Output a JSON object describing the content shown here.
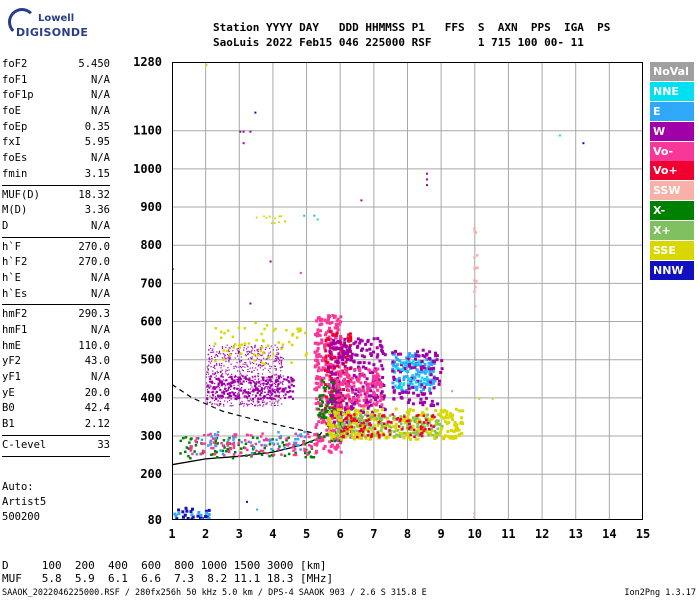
{
  "logo": {
    "line1": "Lowell",
    "line2": "DIGISONDE"
  },
  "header": {
    "line1": "Station YYYY DAY   DDD HHMMSS P1   FFS  S  AXN  PPS  IGA  PS",
    "line2": "SaoLuis 2022 Feb15 046 225000 RSF       1 715 100 00- 11"
  },
  "params": {
    "group1": [
      {
        "name": "foF2",
        "value": "5.450"
      },
      {
        "name": "foF1",
        "value": "N/A"
      },
      {
        "name": "foF1p",
        "value": "N/A"
      },
      {
        "name": "foE",
        "value": "N/A"
      },
      {
        "name": "foEp",
        "value": "0.35"
      },
      {
        "name": "fxI",
        "value": "5.95"
      },
      {
        "name": "foEs",
        "value": "N/A"
      },
      {
        "name": "fmin",
        "value": "3.15"
      }
    ],
    "group2": [
      {
        "name": "MUF(D)",
        "value": "18.32"
      },
      {
        "name": "M(D)",
        "value": "3.36"
      },
      {
        "name": "D",
        "value": "N/A"
      }
    ],
    "group3": [
      {
        "name": "h`F",
        "value": "270.0"
      },
      {
        "name": "h`F2",
        "value": "270.0"
      },
      {
        "name": "h`E",
        "value": "N/A"
      },
      {
        "name": "h`Es",
        "value": "N/A"
      }
    ],
    "group4": [
      {
        "name": "hmF2",
        "value": "290.3"
      },
      {
        "name": "hmF1",
        "value": "N/A"
      },
      {
        "name": "hmE",
        "value": "110.0"
      },
      {
        "name": "yF2",
        "value": "43.0"
      },
      {
        "name": "yF1",
        "value": "N/A"
      },
      {
        "name": "yE",
        "value": "20.0"
      },
      {
        "name": "B0",
        "value": "42.4"
      },
      {
        "name": "B1",
        "value": "2.12"
      }
    ],
    "group5": [
      {
        "name": "C-level",
        "value": "33"
      }
    ]
  },
  "auto": {
    "line1": "Auto:",
    "line2": "Artist5",
    "line3": "500200"
  },
  "legend": [
    {
      "label": "NoVal",
      "color": "#a0a0a0"
    },
    {
      "label": "NNE",
      "color": "#00e0f0"
    },
    {
      "label": "E",
      "color": "#30a8f8"
    },
    {
      "label": "W",
      "color": "#a000a8"
    },
    {
      "label": "Vo-",
      "color": "#f83898"
    },
    {
      "label": "Vo+",
      "color": "#f00030"
    },
    {
      "label": "SSW",
      "color": "#f8b0a8"
    },
    {
      "label": "X-",
      "color": "#008000"
    },
    {
      "label": "X+",
      "color": "#80c060"
    },
    {
      "label": "SSE",
      "color": "#d8d800"
    },
    {
      "label": "NNW",
      "color": "#1010c0"
    }
  ],
  "table": {
    "line1": "D     100  200  400  600  800 1000 1500 3000 [km]",
    "line2": "MUF   5.8  5.9  6.1  6.6  7.3  8.2 11.1 18.3 [MHz]"
  },
  "footer": {
    "left": "SAAOK_2022046225000.RSF / 280fx256h 50 kHz 5.0 km / DPS-4 SAAOK 903 / 2.6 S 315.8 E",
    "right": "Ion2Png 1.3.17"
  },
  "chart_data": {
    "type": "scatter",
    "xlim": [
      1,
      15
    ],
    "ylim": [
      80,
      1280
    ],
    "x_ticks": [
      "1",
      "2",
      "3",
      "4",
      "5",
      "6",
      "7",
      "8",
      "9",
      "10",
      "11",
      "12",
      "13",
      "14",
      "15"
    ],
    "y_ticks": [
      "80",
      "200",
      "300",
      "400",
      "500",
      "600",
      "700",
      "800",
      "900",
      "1000",
      "1100",
      "1280"
    ],
    "grid": true,
    "profile_solid": [
      [
        1.0,
        225
      ],
      [
        2.0,
        240
      ],
      [
        3.0,
        247
      ],
      [
        4.0,
        258
      ],
      [
        4.8,
        275
      ],
      [
        5.3,
        292
      ],
      [
        5.45,
        310
      ]
    ],
    "profile_dashed": [
      [
        1.0,
        435
      ],
      [
        1.6,
        400
      ],
      [
        2.5,
        365
      ],
      [
        3.5,
        342
      ],
      [
        4.5,
        322
      ],
      [
        5.2,
        308
      ],
      [
        5.45,
        300
      ]
    ],
    "clusters": [
      {
        "color_ref": 3,
        "xr": [
          2.0,
          4.3
        ],
        "yr": [
          380,
          540
        ],
        "n": 700,
        "size": 1.2
      },
      {
        "color_ref": 3,
        "xr": [
          2.0,
          4.6
        ],
        "yr": [
          400,
          460
        ],
        "n": 200,
        "size": 2.2
      },
      {
        "color_ref": 9,
        "xr": [
          2.2,
          5.0
        ],
        "yr": [
          490,
          600
        ],
        "n": 60,
        "size": 2.5
      },
      {
        "color_ref": 4,
        "xr": [
          5.2,
          6.0
        ],
        "yr": [
          260,
          620
        ],
        "n": 300,
        "size": 3
      },
      {
        "color_ref": 5,
        "xr": [
          5.5,
          6.3
        ],
        "yr": [
          300,
          580
        ],
        "n": 120,
        "size": 3
      },
      {
        "color_ref": 7,
        "xr": [
          5.3,
          6.0
        ],
        "yr": [
          290,
          450
        ],
        "n": 80,
        "size": 2.5
      },
      {
        "color_ref": 3,
        "xr": [
          5.6,
          7.3
        ],
        "yr": [
          330,
          560
        ],
        "n": 260,
        "size": 3
      },
      {
        "color_ref": 4,
        "xr": [
          5.8,
          7.2
        ],
        "yr": [
          380,
          480
        ],
        "n": 120,
        "size": 3
      },
      {
        "color_ref": 9,
        "xr": [
          5.6,
          9.6
        ],
        "yr": [
          295,
          375
        ],
        "n": 320,
        "size": 3
      },
      {
        "color_ref": 8,
        "xr": [
          5.8,
          9.0
        ],
        "yr": [
          300,
          360
        ],
        "n": 160,
        "size": 2.5
      },
      {
        "color_ref": 5,
        "xr": [
          6.0,
          8.8
        ],
        "yr": [
          300,
          360
        ],
        "n": 100,
        "size": 2.5
      },
      {
        "color_ref": 2,
        "xr": [
          7.5,
          8.8
        ],
        "yr": [
          420,
          520
        ],
        "n": 120,
        "size": 3
      },
      {
        "color_ref": 3,
        "xr": [
          7.5,
          9.0
        ],
        "yr": [
          380,
          530
        ],
        "n": 100,
        "size": 3
      },
      {
        "color_ref": 1,
        "xr": [
          7.6,
          8.6
        ],
        "yr": [
          430,
          500
        ],
        "n": 40,
        "size": 2.5
      },
      {
        "color_ref": 7,
        "xr": [
          1.2,
          5.2
        ],
        "yr": [
          245,
          300
        ],
        "n": 90,
        "size": 2.5
      },
      {
        "color_ref": 4,
        "xr": [
          1.5,
          5.3
        ],
        "yr": [
          250,
          310
        ],
        "n": 110,
        "size": 2.5
      },
      {
        "color_ref": 2,
        "xr": [
          1.3,
          5.0
        ],
        "yr": [
          255,
          315
        ],
        "n": 40,
        "size": 2.5
      },
      {
        "color_ref": 10,
        "xr": [
          1.0,
          2.1
        ],
        "yr": [
          80,
          115
        ],
        "n": 20,
        "size": 3
      },
      {
        "color_ref": 2,
        "xr": [
          1.0,
          2.1
        ],
        "yr": [
          80,
          110
        ],
        "n": 14,
        "size": 3
      },
      {
        "color_ref": 6,
        "xr": [
          9.95,
          10.05
        ],
        "yr": [
          640,
          870
        ],
        "n": 14,
        "size": 2.5
      },
      {
        "color_ref": 9,
        "xr": [
          3.4,
          4.4
        ],
        "yr": [
          860,
          880
        ],
        "n": 12,
        "size": 1.8
      }
    ],
    "points": [
      {
        "x": 3.0,
        "y": 1100,
        "color_ref": 3
      },
      {
        "x": 3.1,
        "y": 1100,
        "color_ref": 3
      },
      {
        "x": 3.3,
        "y": 1100,
        "color_ref": 3
      },
      {
        "x": 3.45,
        "y": 1150,
        "color_ref": 10
      },
      {
        "x": 3.1,
        "y": 1070,
        "color_ref": 3
      },
      {
        "x": 3.9,
        "y": 760,
        "color_ref": 3
      },
      {
        "x": 3.3,
        "y": 650,
        "color_ref": 3
      },
      {
        "x": 4.8,
        "y": 730,
        "color_ref": 4
      },
      {
        "x": 4.9,
        "y": 880,
        "color_ref": 2
      },
      {
        "x": 5.2,
        "y": 880,
        "color_ref": 2
      },
      {
        "x": 5.3,
        "y": 870,
        "color_ref": 1
      },
      {
        "x": 6.6,
        "y": 920,
        "color_ref": 3
      },
      {
        "x": 8.55,
        "y": 960,
        "color_ref": 3
      },
      {
        "x": 8.55,
        "y": 975,
        "color_ref": 3
      },
      {
        "x": 8.55,
        "y": 990,
        "color_ref": 3
      },
      {
        "x": 12.5,
        "y": 1090,
        "color_ref": 1
      },
      {
        "x": 13.2,
        "y": 1070,
        "color_ref": 10
      },
      {
        "x": 2.0,
        "y": 1275,
        "color_ref": 9
      },
      {
        "x": 1.0,
        "y": 740,
        "color_ref": 4
      },
      {
        "x": 10.1,
        "y": 400,
        "color_ref": 9
      },
      {
        "x": 10.5,
        "y": 400,
        "color_ref": 9
      },
      {
        "x": 9.3,
        "y": 420,
        "color_ref": 8
      },
      {
        "x": 3.2,
        "y": 130,
        "color_ref": 10
      },
      {
        "x": 3.5,
        "y": 110,
        "color_ref": 2
      },
      {
        "x": 9.95,
        "y": 90,
        "color_ref": 6
      },
      {
        "x": 9.95,
        "y": 100,
        "color_ref": 6
      }
    ]
  }
}
